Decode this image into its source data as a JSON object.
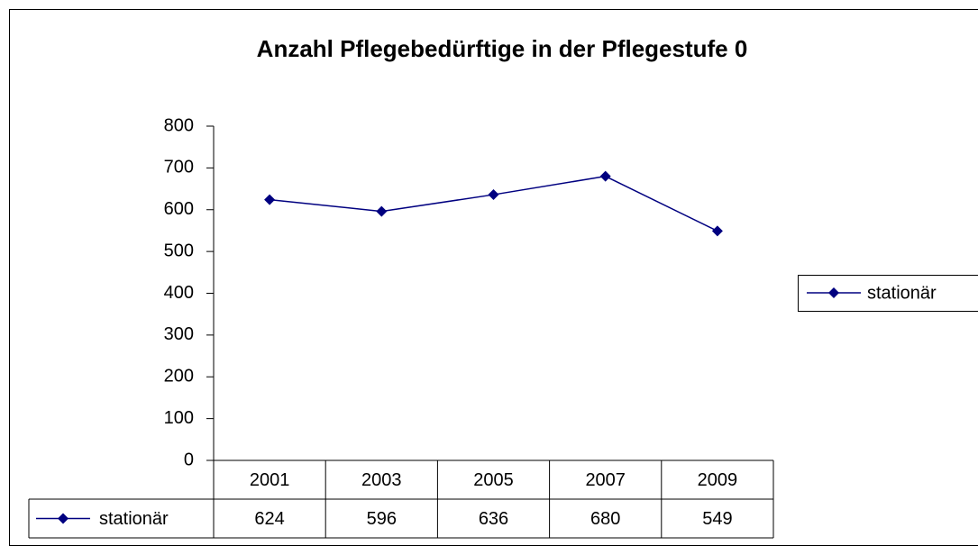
{
  "chart_data": {
    "type": "line",
    "title": "Anzahl Pflegebedürftige in der Pflegestufe 0",
    "categories": [
      "2001",
      "2003",
      "2005",
      "2007",
      "2009"
    ],
    "series": [
      {
        "name": "stationär",
        "color": "#000080",
        "values": [
          624,
          596,
          636,
          680,
          549
        ]
      }
    ],
    "ylim": [
      0,
      800
    ],
    "yticks": [
      0,
      100,
      200,
      300,
      400,
      500,
      600,
      700,
      800
    ],
    "legend": "right"
  }
}
